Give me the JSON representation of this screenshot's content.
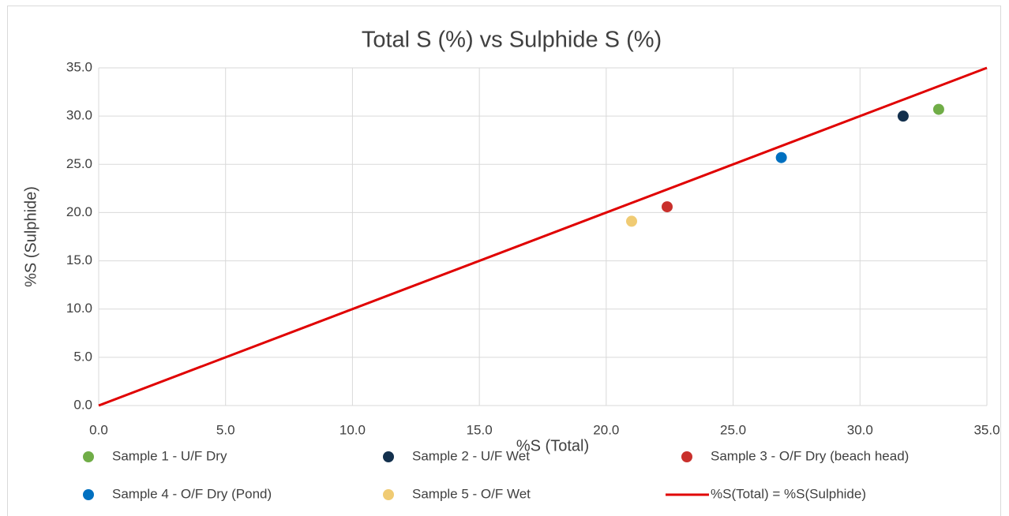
{
  "chart_data": {
    "type": "scatter",
    "title": "Total S (%) vs Sulphide S (%)",
    "x_label": "%S (Total)",
    "y_label": "%S (Sulphide)",
    "xlim": [
      0,
      35
    ],
    "ylim": [
      0,
      35
    ],
    "xticks": [
      {
        "value": 0,
        "label": "0.0"
      },
      {
        "value": 5,
        "label": "5.0"
      },
      {
        "value": 10,
        "label": "10.0"
      },
      {
        "value": 15,
        "label": "15.0"
      },
      {
        "value": 20,
        "label": "20.0"
      },
      {
        "value": 25,
        "label": "25.0"
      },
      {
        "value": 30,
        "label": "30.0"
      },
      {
        "value": 35,
        "label": "35.0"
      }
    ],
    "yticks": [
      {
        "value": 0,
        "label": "0.0"
      },
      {
        "value": 5,
        "label": "5.0"
      },
      {
        "value": 10,
        "label": "10.0"
      },
      {
        "value": 15,
        "label": "15.0"
      },
      {
        "value": 20,
        "label": "20.0"
      },
      {
        "value": 25,
        "label": "25.0"
      },
      {
        "value": 30,
        "label": "30.0"
      },
      {
        "value": 35,
        "label": "35.0"
      }
    ],
    "grid": true,
    "legend": "bottom",
    "series": [
      {
        "name": "Sample 1 - U/F Dry",
        "color": "#70ad47",
        "style": "marker",
        "x": [
          33.1
        ],
        "y": [
          30.7
        ]
      },
      {
        "name": "Sample 2 - U/F Wet",
        "color": "#13304d",
        "style": "marker",
        "x": [
          31.7
        ],
        "y": [
          30.0
        ]
      },
      {
        "name": "Sample 3 - O/F Dry (beach head)",
        "color": "#c9302c",
        "style": "marker",
        "x": [
          22.4
        ],
        "y": [
          20.6
        ]
      },
      {
        "name": "Sample 4 - O/F Dry (Pond)",
        "color": "#0070c0",
        "style": "marker",
        "x": [
          26.9
        ],
        "y": [
          25.7
        ]
      },
      {
        "name": "Sample 5 - O/F Wet",
        "color": "#f0cb73",
        "style": "marker",
        "x": [
          21.0
        ],
        "y": [
          19.1
        ]
      },
      {
        "name": "%S(Total) = %S(Sulphide)",
        "color": "#e00000",
        "style": "line",
        "x": [
          0,
          35
        ],
        "y": [
          0,
          35
        ]
      }
    ]
  }
}
